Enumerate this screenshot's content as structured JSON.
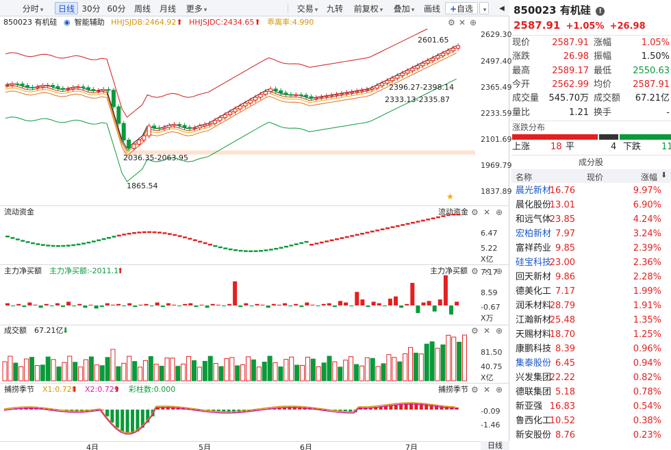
{
  "toolbar": {
    "items": [
      "分时",
      "日线",
      "30分",
      "60分",
      "周线",
      "月线",
      "更多",
      "交易",
      "九转",
      "前复权",
      "叠加",
      "画线",
      "自选"
    ]
  },
  "legend": {
    "name": "850023 有机硅",
    "assist": "智能辅助",
    "hhjsjdb": "HHJSJDB:2464.92",
    "hhjsjdc": "HHJSJDC:2434.65",
    "deviation": "乖离率:4.990"
  },
  "price_axis": [
    "2629.30",
    "2497.40",
    "2365.49",
    "2233.59",
    "2101.69",
    "1969.79",
    "1837.89"
  ],
  "annotations": {
    "high": "2601.65",
    "band1": "2396.27-2398.14",
    "band2": "2333.13-2335.87",
    "band3": "2036.35-2063.95",
    "low": "1865.54"
  },
  "flow": {
    "title": "流动资金",
    "title_right": "流动资金",
    "axis": [
      "6.47",
      "5.22"
    ],
    "unit": "X亿"
  },
  "main_net": {
    "title": "主力净买额",
    "value": "主力净买额:-2011.1",
    "title_right": "主力净买额",
    "axis": [
      "7.17",
      "8.59",
      "-0.67"
    ],
    "unit": "X万"
  },
  "volume": {
    "title": "成交额",
    "value": "67.21亿",
    "axis": [
      "81.50",
      "40.75"
    ],
    "unit": "X亿"
  },
  "season": {
    "title": "捕捞季节",
    "x1": "X1:0.728",
    "x2": "X2:0.729",
    "bars": "彩柱数:0.000",
    "title_right": "捕捞季节",
    "axis": [
      "-0.09",
      "-1.46"
    ]
  },
  "xaxis": [
    "4月",
    "5月",
    "6月",
    "7月"
  ],
  "xaxis_right": "日线",
  "quote": {
    "code_name": "850023 有机硅",
    "price": "2587.91",
    "pct": "+1.05%",
    "chg": "+26.98",
    "fields": [
      {
        "l1": "现价",
        "v1": "2587.91",
        "c1": "red",
        "l2": "涨幅",
        "v2": "1.05%",
        "c2": "red"
      },
      {
        "l1": "涨跌",
        "v1": "26.98",
        "c1": "red",
        "l2": "振幅",
        "v2": "1.50%",
        "c2": "black"
      },
      {
        "l1": "最高",
        "v1": "2589.17",
        "c1": "red",
        "l2": "最低",
        "v2": "2550.63",
        "c2": "green"
      },
      {
        "l1": "今开",
        "v1": "2562.99",
        "c1": "red",
        "l2": "均价",
        "v2": "2587.91",
        "c2": "red"
      },
      {
        "l1": "成交量",
        "v1": "545.70万",
        "c1": "black",
        "l2": "成交额",
        "v2": "67.21亿",
        "c2": "black"
      },
      {
        "l1": "量比",
        "v1": "1.21",
        "c1": "black",
        "l2": "换手",
        "v2": "-",
        "c2": "black"
      }
    ],
    "dist_title": "涨跌分布",
    "dist": {
      "up_label": "上涨",
      "up": "18",
      "flat_label": "平",
      "flat": "4",
      "down_label": "下跌",
      "down": "11"
    }
  },
  "components": {
    "title": "成分股",
    "headers": [
      "名称",
      "现价",
      "涨幅"
    ],
    "rows": [
      {
        "name": "晨光新材",
        "price": "16.76",
        "pct": "9.97%",
        "blue": true
      },
      {
        "name": "晨化股份",
        "price": "13.01",
        "pct": "6.90%",
        "blue": false
      },
      {
        "name": "和远气体",
        "price": "23.85",
        "pct": "4.24%",
        "blue": false
      },
      {
        "name": "宏柏新材",
        "price": "7.97",
        "pct": "3.24%",
        "blue": true
      },
      {
        "name": "富祥药业",
        "price": "9.85",
        "pct": "2.39%",
        "blue": false
      },
      {
        "name": "硅宝科技",
        "price": "23.00",
        "pct": "2.36%",
        "blue": true
      },
      {
        "name": "回天新材",
        "price": "9.86",
        "pct": "2.28%",
        "blue": false
      },
      {
        "name": "德美化工",
        "price": "7.17",
        "pct": "1.99%",
        "blue": false
      },
      {
        "name": "润禾材料",
        "price": "28.79",
        "pct": "1.91%",
        "blue": false
      },
      {
        "name": "江瀚新材",
        "price": "25.48",
        "pct": "1.35%",
        "blue": false
      },
      {
        "name": "天赐材料",
        "price": "18.70",
        "pct": "1.25%",
        "blue": false
      },
      {
        "name": "康鹏科技",
        "price": "8.39",
        "pct": "0.96%",
        "blue": false
      },
      {
        "name": "集泰股份",
        "price": "6.45",
        "pct": "0.94%",
        "blue": true
      },
      {
        "name": "兴发集团",
        "price": "22.22",
        "pct": "0.82%",
        "blue": false
      },
      {
        "name": "德联集团",
        "price": "5.18",
        "pct": "0.78%",
        "blue": false
      },
      {
        "name": "新亚强",
        "price": "16.83",
        "pct": "0.54%",
        "blue": false
      },
      {
        "name": "鲁西化工",
        "price": "10.52",
        "pct": "0.38%",
        "blue": false
      },
      {
        "name": "新安股份",
        "price": "8.76",
        "pct": "0.23%",
        "blue": false
      }
    ]
  },
  "colors": {
    "up": "#e32020",
    "down": "#0a9a3a",
    "accent": "#1a56c8"
  }
}
